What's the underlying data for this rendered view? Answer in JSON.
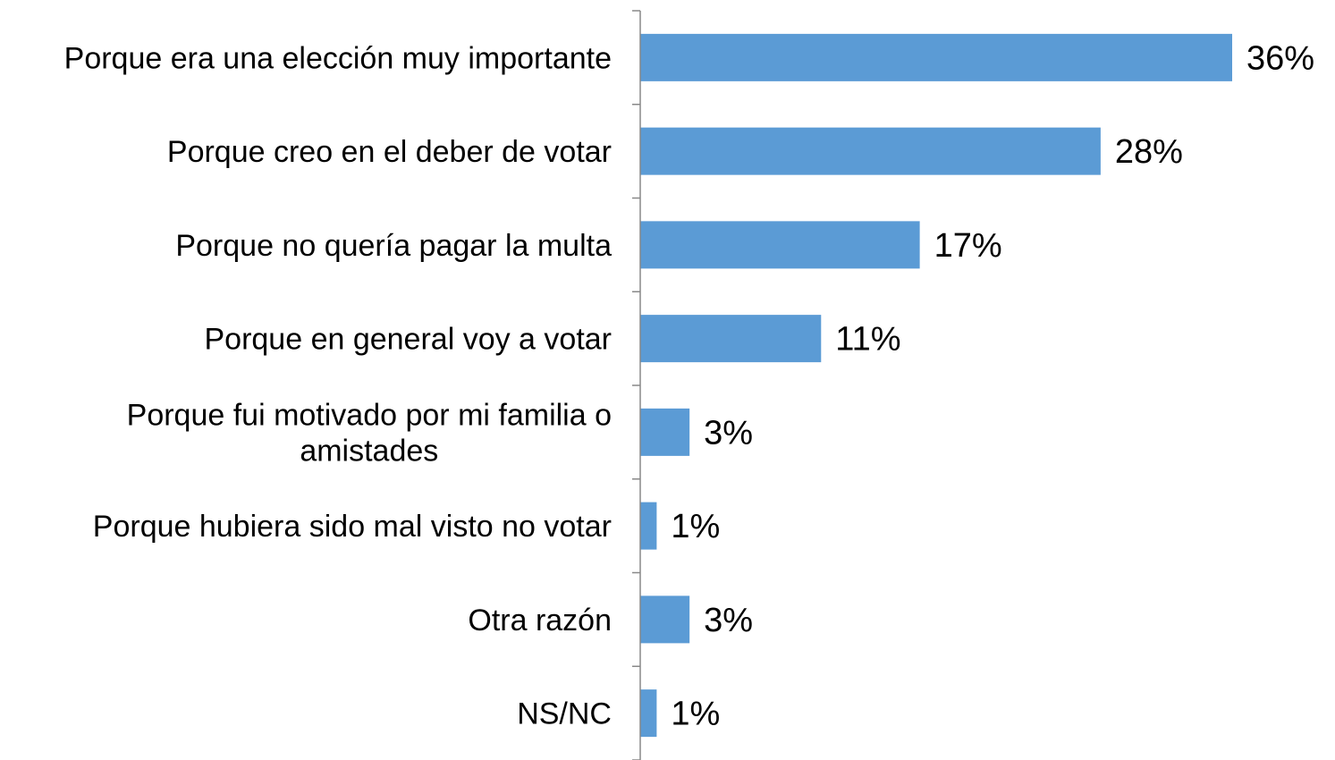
{
  "chart_data": {
    "type": "bar",
    "orientation": "horizontal",
    "categories": [
      [
        "Porque era una elección muy importante"
      ],
      [
        "Porque creo en el deber de votar"
      ],
      [
        "Porque no quería pagar la multa"
      ],
      [
        "Porque en general voy a votar"
      ],
      [
        "Porque fui motivado por mi familia o",
        "amistades"
      ],
      [
        "Porque hubiera sido mal visto no votar"
      ],
      [
        "Otra razón"
      ],
      [
        "NS/NC"
      ]
    ],
    "values": [
      36,
      28,
      17,
      11,
      3,
      1,
      3,
      1
    ],
    "data_labels": [
      "36%",
      "28%",
      "17%",
      "11%",
      "3%",
      "1%",
      "3%",
      "1%"
    ],
    "value_unit": "%",
    "xlim": [
      0,
      36
    ],
    "bar_color": "#5b9bd5",
    "axis_color": "#888888",
    "grid": false,
    "legend": "none"
  }
}
